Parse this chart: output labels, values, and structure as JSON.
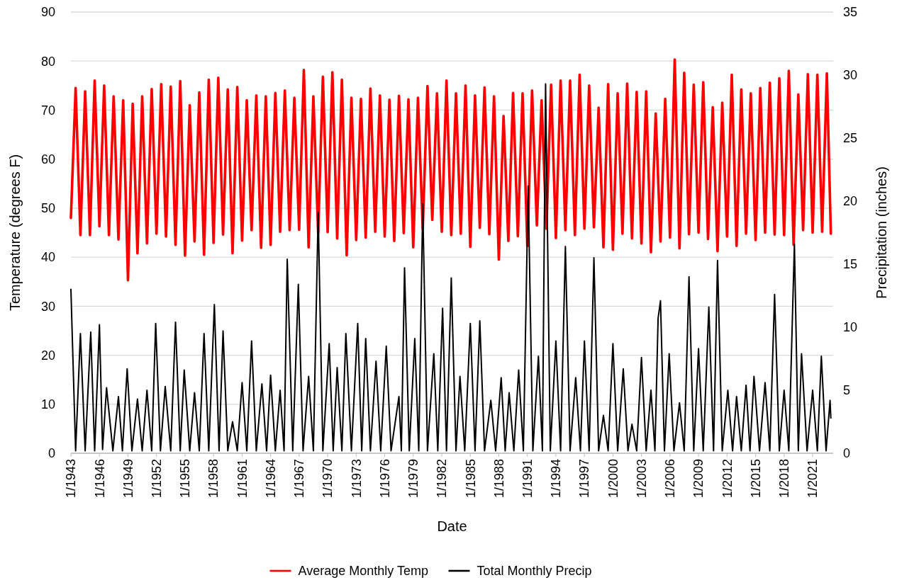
{
  "chart_data": {
    "type": "line",
    "xlabel": "Date",
    "ylabel": "Temperature (degrees F)",
    "y2label": "Precipitation (inches)",
    "xlim": [
      "1943-01",
      "2023-03"
    ],
    "xticks": [
      {
        "value": "1943-01",
        "label": "1/1943"
      },
      {
        "value": "1946-01",
        "label": "1/1946"
      },
      {
        "value": "1949-01",
        "label": "1/1949"
      },
      {
        "value": "1952-01",
        "label": "1/1952"
      },
      {
        "value": "1955-01",
        "label": "1/1955"
      },
      {
        "value": "1958-01",
        "label": "1/1958"
      },
      {
        "value": "1961-01",
        "label": "1/1961"
      },
      {
        "value": "1964-01",
        "label": "1/1964"
      },
      {
        "value": "1967-01",
        "label": "1/1967"
      },
      {
        "value": "1970-01",
        "label": "1/1970"
      },
      {
        "value": "1973-01",
        "label": "1/1973"
      },
      {
        "value": "1976-01",
        "label": "1/1976"
      },
      {
        "value": "1979-01",
        "label": "1/1979"
      },
      {
        "value": "1982-01",
        "label": "1/1982"
      },
      {
        "value": "1985-01",
        "label": "1/1985"
      },
      {
        "value": "1988-01",
        "label": "1/1988"
      },
      {
        "value": "1991-01",
        "label": "1/1991"
      },
      {
        "value": "1994-01",
        "label": "1/1994"
      },
      {
        "value": "1997-01",
        "label": "1/1997"
      },
      {
        "value": "2000-01",
        "label": "1/2000"
      },
      {
        "value": "2003-01",
        "label": "1/2003"
      },
      {
        "value": "2006-01",
        "label": "1/2006"
      },
      {
        "value": "2009-01",
        "label": "1/2009"
      },
      {
        "value": "2012-01",
        "label": "1/2012"
      },
      {
        "value": "2015-01",
        "label": "1/2015"
      },
      {
        "value": "2018-01",
        "label": "1/2018"
      },
      {
        "value": "2021-01",
        "label": "1/2021"
      }
    ],
    "ylim": [
      0,
      90
    ],
    "yticks": [
      0,
      10,
      20,
      30,
      40,
      50,
      60,
      70,
      80,
      90
    ],
    "y2lim": [
      0,
      35
    ],
    "y2ticks": [
      0,
      5,
      10,
      15,
      20,
      25,
      30,
      35
    ],
    "grid": "y",
    "legend": "bottom",
    "series": [
      {
        "name": "Average Monthly Temp",
        "color": "#ff0000",
        "x": [
          "1943-01",
          "1943-07",
          "1944-01",
          "1944-07",
          "1945-01",
          "1945-07",
          "1946-01",
          "1946-07",
          "1947-01",
          "1947-07",
          "1948-01",
          "1948-07",
          "1949-01",
          "1949-07",
          "1950-01",
          "1950-07",
          "1951-01",
          "1951-07",
          "1952-01",
          "1952-07",
          "1953-01",
          "1953-07",
          "1954-01",
          "1954-07",
          "1955-01",
          "1955-07",
          "1956-01",
          "1956-07",
          "1957-01",
          "1957-07",
          "1958-01",
          "1958-07",
          "1959-01",
          "1959-07",
          "1960-01",
          "1960-07",
          "1961-01",
          "1961-07",
          "1962-01",
          "1962-07",
          "1963-01",
          "1963-07",
          "1964-01",
          "1964-07",
          "1965-01",
          "1965-07",
          "1966-01",
          "1966-07",
          "1967-01",
          "1967-07",
          "1968-01",
          "1968-07",
          "1969-01",
          "1969-07",
          "1970-01",
          "1970-07",
          "1971-01",
          "1971-07",
          "1972-01",
          "1972-07",
          "1973-01",
          "1973-07",
          "1974-01",
          "1974-07",
          "1975-01",
          "1975-07",
          "1976-01",
          "1976-07",
          "1977-01",
          "1977-07",
          "1978-01",
          "1978-07",
          "1979-01",
          "1979-07",
          "1980-01",
          "1980-07",
          "1981-01",
          "1981-07",
          "1982-01",
          "1982-07",
          "1983-01",
          "1983-07",
          "1984-01",
          "1984-07",
          "1985-01",
          "1985-07",
          "1986-01",
          "1986-07",
          "1987-01",
          "1987-07",
          "1988-01",
          "1988-07",
          "1989-01",
          "1989-07",
          "1990-01",
          "1990-07",
          "1991-01",
          "1991-07",
          "1992-01",
          "1992-07",
          "1993-01",
          "1993-07",
          "1994-01",
          "1994-07",
          "1995-01",
          "1995-07",
          "1996-01",
          "1996-07",
          "1997-01",
          "1997-07",
          "1998-01",
          "1998-07",
          "1999-01",
          "1999-07",
          "2000-01",
          "2000-07",
          "2001-01",
          "2001-07",
          "2002-01",
          "2002-07",
          "2003-01",
          "2003-07",
          "2004-01",
          "2004-07",
          "2005-01",
          "2005-07",
          "2006-01",
          "2006-07",
          "2007-01",
          "2007-07",
          "2008-01",
          "2008-07",
          "2009-01",
          "2009-07",
          "2010-01",
          "2010-07",
          "2011-01",
          "2011-07",
          "2012-01",
          "2012-07",
          "2013-01",
          "2013-07",
          "2014-01",
          "2014-07",
          "2015-01",
          "2015-07",
          "2016-01",
          "2016-07",
          "2017-01",
          "2017-07",
          "2018-01",
          "2018-07",
          "2019-01",
          "2019-07",
          "2020-01",
          "2020-07",
          "2021-01",
          "2021-07",
          "2022-01",
          "2022-07",
          "2022-12"
        ],
        "values": [
          48.0,
          74.5,
          44.5,
          73.8,
          44.5,
          76.0,
          46.3,
          75.0,
          44.5,
          72.8,
          43.6,
          72.0,
          35.3,
          71.3,
          40.8,
          72.8,
          42.8,
          74.3,
          44.8,
          75.3,
          44.2,
          74.8,
          42.5,
          75.9,
          40.3,
          71.0,
          43.2,
          73.6,
          40.5,
          76.2,
          42.9,
          76.6,
          44.6,
          74.2,
          40.8,
          74.7,
          43.4,
          72.0,
          45.5,
          73.0,
          41.9,
          72.8,
          42.5,
          73.5,
          45.2,
          74.0,
          45.5,
          72.5,
          45.6,
          78.2,
          42.0,
          72.8,
          44.9,
          76.8,
          45.1,
          77.7,
          43.8,
          76.2,
          40.4,
          72.5,
          43.5,
          72.3,
          44.0,
          74.4,
          45.2,
          73.0,
          44.2,
          72.1,
          43.3,
          72.9,
          44.9,
          72.2,
          42.0,
          72.5,
          45.8,
          74.9,
          47.6,
          73.4,
          45.2,
          76.0,
          44.5,
          73.4,
          44.8,
          75.0,
          42.1,
          73.0,
          46.0,
          74.6,
          44.7,
          72.8,
          39.5,
          68.8,
          43.3,
          73.5,
          44.3,
          73.4,
          42.3,
          74.0,
          46.5,
          72.0,
          45.8,
          75.2,
          43.9,
          76.0,
          45.5,
          76.0,
          44.5,
          77.2,
          45.8,
          75.0,
          46.1,
          70.5,
          42.0,
          75.3,
          41.5,
          73.4,
          44.8,
          75.4,
          43.8,
          73.7,
          42.8,
          73.8,
          41.0,
          69.3,
          43.2,
          72.3,
          44.0,
          80.3,
          41.8,
          77.6,
          44.7,
          75.2,
          45.0,
          75.7,
          43.7,
          70.6,
          41.2,
          71.5,
          44.2,
          77.2,
          42.3,
          74.2,
          44.8,
          73.4,
          43.5,
          74.5,
          45.0,
          75.6,
          44.6,
          76.5,
          44.5,
          78.0,
          42.5,
          73.2,
          45.5,
          77.3,
          45.0,
          77.2,
          45.2,
          77.5,
          44.8
        ]
      },
      {
        "name": "Total Monthly Precip",
        "color": "#000000",
        "axis": "y2",
        "x": [
          "1943-01",
          "1943-07",
          "1944-01",
          "1944-07",
          "1945-02",
          "1945-07",
          "1946-01",
          "1946-05",
          "1946-10",
          "1947-06",
          "1948-01",
          "1948-06",
          "1948-12",
          "1949-06",
          "1950-01",
          "1950-07",
          "1951-01",
          "1951-07",
          "1951-12",
          "1952-06",
          "1952-12",
          "1953-07",
          "1954-01",
          "1954-07",
          "1954-12",
          "1955-07",
          "1956-01",
          "1956-07",
          "1957-01",
          "1957-07",
          "1958-02",
          "1958-08",
          "1959-01",
          "1959-07",
          "1960-01",
          "1960-07",
          "1961-01",
          "1961-07",
          "1962-01",
          "1962-07",
          "1963-02",
          "1963-08",
          "1964-01",
          "1964-07",
          "1965-01",
          "1965-06",
          "1965-10",
          "1966-05",
          "1966-12",
          "1967-06",
          "1968-01",
          "1968-07",
          "1969-01",
          "1969-07",
          "1970-03",
          "1970-08",
          "1971-01",
          "1971-07",
          "1971-12",
          "1972-07",
          "1973-03",
          "1973-08",
          "1974-01",
          "1974-07",
          "1975-02",
          "1975-08",
          "1976-03",
          "1976-09",
          "1977-07",
          "1977-10",
          "1978-02",
          "1978-08",
          "1979-03",
          "1979-08",
          "1980-01",
          "1980-07",
          "1981-03",
          "1981-08",
          "1982-02",
          "1982-07",
          "1983-01",
          "1983-07",
          "1983-12",
          "1984-06",
          "1985-01",
          "1985-07",
          "1986-01",
          "1986-07",
          "1987-03",
          "1987-09",
          "1988-04",
          "1988-09",
          "1989-02",
          "1989-08",
          "1990-02",
          "1990-08",
          "1991-02",
          "1991-08",
          "1992-03",
          "1992-08",
          "1992-12",
          "1993-06",
          "1994-01",
          "1994-07",
          "1995-01",
          "1995-07",
          "1996-02",
          "1996-08",
          "1997-01",
          "1997-07",
          "1998-01",
          "1998-07",
          "1999-01",
          "1999-07",
          "2000-01",
          "2000-07",
          "2001-02",
          "2001-08",
          "2002-01",
          "2002-07",
          "2003-01",
          "2003-07",
          "2004-01",
          "2004-06",
          "2004-10",
          "2005-01",
          "2005-06",
          "2005-12",
          "2006-06",
          "2007-01",
          "2007-07",
          "2008-01",
          "2008-07",
          "2009-01",
          "2009-07",
          "2010-02",
          "2010-08",
          "2011-01",
          "2011-07",
          "2012-02",
          "2012-08",
          "2013-01",
          "2013-07",
          "2014-01",
          "2014-06",
          "2014-11",
          "2015-06",
          "2016-01",
          "2016-07",
          "2017-01",
          "2017-07",
          "2018-01",
          "2018-07",
          "2019-02",
          "2019-07",
          "2019-11",
          "2020-06",
          "2021-01",
          "2021-07",
          "2021-12",
          "2022-06",
          "2022-11",
          "2022-12"
        ],
        "values": [
          13.0,
          0.2,
          9.5,
          0.2,
          9.6,
          0.2,
          10.2,
          0.3,
          5.2,
          0.2,
          4.5,
          0.2,
          6.7,
          0.2,
          4.3,
          0.2,
          5.0,
          0.2,
          10.3,
          0.2,
          5.3,
          0.2,
          10.4,
          0.2,
          6.6,
          0.2,
          4.8,
          0.2,
          9.5,
          0.2,
          11.8,
          0.2,
          9.7,
          0.2,
          2.5,
          0.2,
          5.6,
          0.2,
          8.9,
          0.2,
          5.5,
          0.2,
          6.2,
          0.2,
          5.0,
          0.2,
          15.4,
          0.2,
          13.4,
          0.2,
          6.1,
          0.2,
          19.1,
          0.2,
          8.7,
          0.2,
          6.8,
          0.2,
          9.5,
          0.2,
          10.3,
          0.2,
          9.1,
          0.2,
          7.3,
          0.2,
          8.5,
          0.2,
          4.5,
          0.2,
          14.7,
          0.2,
          9.1,
          0.2,
          19.8,
          0.2,
          7.9,
          0.2,
          11.5,
          0.2,
          13.9,
          0.2,
          6.1,
          0.2,
          10.3,
          0.2,
          10.5,
          0.2,
          4.2,
          0.2,
          6.0,
          0.2,
          4.8,
          0.2,
          6.6,
          0.2,
          21.2,
          0.2,
          7.7,
          0.2,
          29.3,
          0.2,
          8.9,
          0.2,
          16.4,
          0.2,
          6.0,
          0.2,
          8.9,
          0.2,
          15.5,
          0.2,
          3.0,
          0.2,
          8.7,
          0.2,
          6.7,
          0.2,
          2.3,
          0.2,
          7.6,
          0.2,
          5.0,
          0.2,
          10.7,
          12.1,
          0.2,
          7.9,
          0.2,
          4.0,
          0.2,
          14.0,
          0.2,
          8.3,
          0.2,
          11.6,
          0.2,
          15.3,
          0.2,
          5.0,
          0.2,
          4.5,
          0.2,
          5.4,
          0.2,
          6.1,
          0.2,
          5.6,
          0.2,
          12.6,
          0.2,
          5.0,
          0.2,
          16.6,
          0.2,
          7.9,
          0.2,
          5.0,
          0.2,
          7.7,
          0.2,
          4.2,
          2.8
        ]
      }
    ]
  }
}
